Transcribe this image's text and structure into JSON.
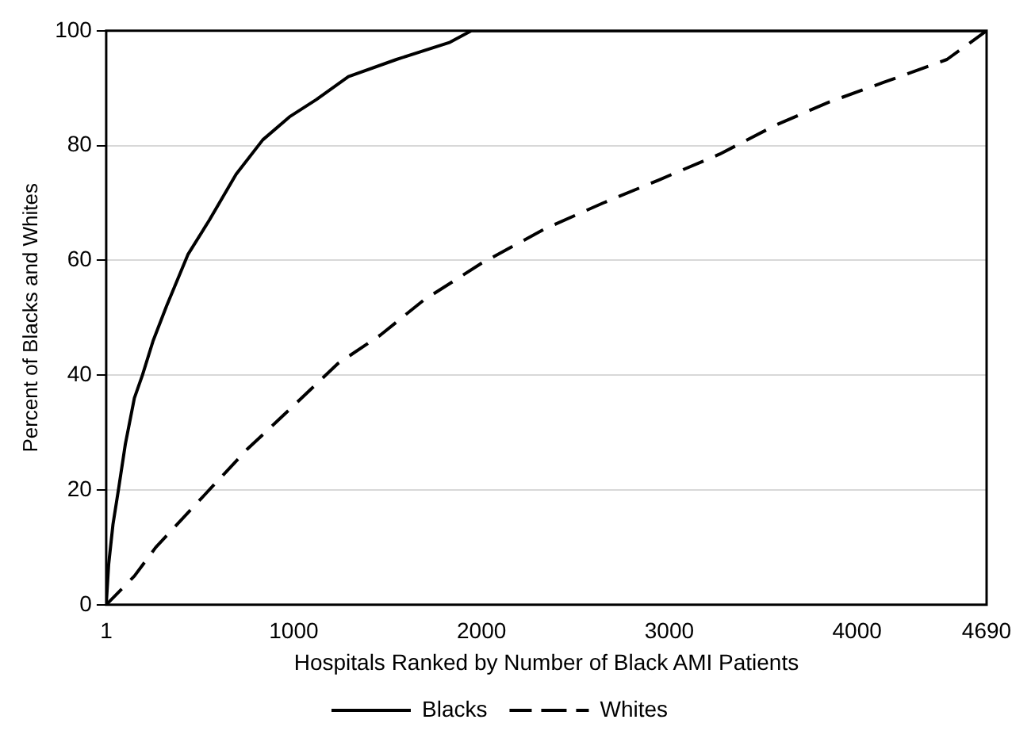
{
  "chart_data": {
    "type": "line",
    "xlabel": "Hospitals Ranked by Number of Black AMI Patients",
    "ylabel": "Percent of Blacks and Whites",
    "xlim": [
      1,
      4690
    ],
    "xticks": [
      1,
      1000,
      2000,
      3000,
      4000,
      4690
    ],
    "ylim": [
      0,
      100
    ],
    "yticks": [
      0,
      20,
      40,
      60,
      80,
      100
    ],
    "grid": "y",
    "legend": "bottom",
    "marker": "none",
    "series": [
      {
        "name": "Blacks",
        "color": "#000000",
        "line_style": "solid",
        "x": [
          1,
          14,
          37,
          66,
          103,
          151,
          194,
          251,
          322,
          436,
          550,
          693,
          835,
          977,
          1120,
          1291,
          1547,
          1832,
          1946,
          4690
        ],
        "values": [
          0,
          7,
          14,
          20,
          28,
          36,
          40,
          46,
          52,
          61,
          67,
          75,
          81,
          85,
          88,
          92,
          95,
          98,
          100,
          100
        ]
      },
      {
        "name": "Whites",
        "color": "#000000",
        "line_style": "dashed",
        "x": [
          1,
          151,
          265,
          521,
          749,
          977,
          1234,
          1462,
          1689,
          2000,
          2338,
          2648,
          2944,
          3268,
          3563,
          3845,
          4141,
          4479,
          4690
        ],
        "values": [
          0,
          5,
          10,
          19,
          27,
          34,
          42,
          47,
          53,
          59.5,
          65.5,
          70,
          74,
          78.5,
          83.5,
          87.5,
          91,
          95,
          100
        ]
      }
    ]
  }
}
